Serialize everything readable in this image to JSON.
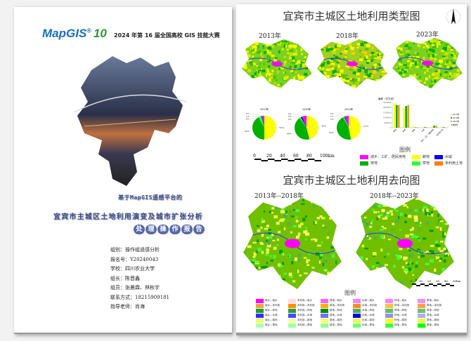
{
  "cover": {
    "logo": "MapGIS 10",
    "contest": "2024 年第 16 届全国高校 GIS 技能大赛",
    "subtitle": "基于MapGIS遥感平台的",
    "title": "宜宾市主城区土地利用演变及城市扩张分析",
    "badge": [
      "处",
      "理",
      "操",
      "作",
      "报",
      "告"
    ],
    "info": [
      "组别：操作组遥感分析",
      "报名号：Y20240043",
      "学校：四川农业大学",
      "组长：陈晋鑫",
      "组员：张晨霖、林秋宇",
      "联系方式：18215909181",
      "指导老师：肖海"
    ]
  },
  "poster1": {
    "title": "宜宾市主城区土地利用类型图",
    "years": [
      "2013年",
      "2018年",
      "2023年"
    ],
    "north_icon": "north-arrow-icon",
    "scale_labels": [
      "0",
      "20",
      "40",
      "60",
      "80",
      "100km"
    ],
    "legend_title": "图例",
    "legend": [
      {
        "label": "城乡、工矿、居民用地",
        "color": "#ff00ff"
      },
      {
        "label": "耕地",
        "color": "#ffff00"
      },
      {
        "label": "水域",
        "color": "#0000ff"
      },
      {
        "label": "林地",
        "color": "#00b000"
      },
      {
        "label": "草地",
        "color": "#33ff33"
      },
      {
        "label": "未利用土地",
        "color": "#ff8000"
      }
    ]
  },
  "chart_data": [
    {
      "type": "pie",
      "title": "2013年",
      "slices": [
        {
          "label": "耕地",
          "value": 50,
          "color": "#ffff00"
        },
        {
          "label": "林地",
          "value": 42,
          "color": "#00b000"
        },
        {
          "label": "草地",
          "value": 4,
          "color": "#33ff33"
        },
        {
          "label": "水域",
          "value": 1,
          "color": "#0000ff"
        },
        {
          "label": "城乡、工矿、居民用地",
          "value": 3,
          "color": "#ff00ff"
        }
      ]
    },
    {
      "type": "pie",
      "title": "2018年",
      "slices": [
        {
          "label": "耕地",
          "value": 46,
          "color": "#ffff00"
        },
        {
          "label": "林地",
          "value": 44,
          "color": "#00b000"
        },
        {
          "label": "草地",
          "value": 2,
          "color": "#33ff33"
        },
        {
          "label": "水域",
          "value": 2,
          "color": "#0000ff"
        },
        {
          "label": "城乡、工矿、居民用地",
          "value": 6,
          "color": "#ff00ff"
        }
      ]
    },
    {
      "type": "pie",
      "title": "2023年",
      "slices": [
        {
          "label": "耕地",
          "value": 47,
          "color": "#ffff00"
        },
        {
          "label": "林地",
          "value": 45,
          "color": "#00b000"
        },
        {
          "label": "草地",
          "value": 2,
          "color": "#33ff33"
        },
        {
          "label": "水域",
          "value": 1,
          "color": "#0000ff"
        },
        {
          "label": "城乡、工矿、居民用地",
          "value": 5,
          "color": "#ff00ff"
        }
      ]
    },
    {
      "type": "bar",
      "ylabel": "面积（平方米）",
      "ylim": [
        0,
        2500000
      ],
      "yticks": [
        "0",
        "500000",
        "1000000",
        "1500000",
        "2000000",
        "2500000"
      ],
      "categories": [
        "耕地",
        "林地",
        "草地",
        "水域",
        "城乡、工矿、居民用地",
        "未利用土地"
      ],
      "series": [
        {
          "name": "2013年",
          "color": "#ffff00",
          "values": [
            2400000,
            1950000,
            150000,
            50000,
            100000,
            20000
          ]
        },
        {
          "name": "2018年",
          "color": "#00a050",
          "values": [
            2250000,
            2150000,
            40000,
            60000,
            200000,
            60000
          ]
        },
        {
          "name": "2023年",
          "color": "#f0a000",
          "values": [
            2230000,
            2250000,
            40000,
            50000,
            170000,
            30000
          ]
        }
      ],
      "legend_extra": "土地类型"
    }
  ],
  "poster2": {
    "title": "宜宾市主城区土地利用去向图",
    "periods": [
      "2013年--2018年",
      "2018年--2023年"
    ],
    "scale_labels": [
      "0",
      "10",
      "20",
      "30",
      "40",
      "50km"
    ],
    "legend_title": "图例",
    "legend": [
      [
        {
          "label": "城乡—城乡",
          "color": "#ff00ff"
        },
        {
          "label": "城乡—未利用",
          "color": "#ffa040"
        },
        {
          "label": "城乡—林地",
          "color": "#20a020"
        },
        {
          "label": "城乡—水域",
          "color": "#3030ff"
        },
        {
          "label": "城乡—耕地",
          "color": "#f0ff60"
        },
        {
          "label": "城乡—草地",
          "color": "#b0ffb0"
        }
      ],
      [
        {
          "label": "未利用—城乡",
          "color": "#ffd8e8"
        },
        {
          "label": "未利用—未利用",
          "color": "#ff9000"
        },
        {
          "label": "未利用—林地",
          "color": "#30a030"
        },
        {
          "label": "未利用—水域",
          "color": "#4848ff"
        },
        {
          "label": "未利用—耕地",
          "color": "#f0ffa0"
        },
        {
          "label": "未利用—草地",
          "color": "#a0ffa0"
        }
      ],
      [
        {
          "label": "耕地—城乡",
          "color": "#ff60ff"
        },
        {
          "label": "耕地—未利用",
          "color": "#ffb000"
        },
        {
          "label": "耕地—林地",
          "color": "#009000"
        },
        {
          "label": "耕地—水域",
          "color": "#7070ff"
        },
        {
          "label": "耕地—耕地",
          "color": "#ffff60"
        },
        {
          "label": "耕地—草地",
          "color": "#90ff90"
        }
      ],
      [
        {
          "label": "水域—城乡",
          "color": "#ff80ff"
        },
        {
          "label": "水域—未利用",
          "color": "#ff8a20"
        },
        {
          "label": "水域—林地",
          "color": "#50b050"
        },
        {
          "label": "水域—水域",
          "color": "#0000ff"
        },
        {
          "label": "水域—耕地",
          "color": "#e8ff40"
        },
        {
          "label": "水域—草地",
          "color": "#70ff70"
        }
      ],
      [
        {
          "label": "林地—城乡",
          "color": "#ff80ff"
        },
        {
          "label": "林地—未利用",
          "color": "#ffc040"
        },
        {
          "label": "林地—林地",
          "color": "#60c060"
        },
        {
          "label": "林地—水域",
          "color": "#9090ff"
        },
        {
          "label": "林地—耕地",
          "color": "#ffff00"
        },
        {
          "label": "林地—草地",
          "color": "#40ff40"
        }
      ],
      [
        {
          "label": "草地—城乡",
          "color": "#f090f0"
        },
        {
          "label": "草地—未利用",
          "color": "#ffa050"
        },
        {
          "label": "草地—林地",
          "color": "#70c070"
        },
        {
          "label": "草地—水域",
          "color": "#b0b0ff"
        },
        {
          "label": "草地—耕地",
          "color": "#e8ff40"
        },
        {
          "label": "草地—草地",
          "color": "#00ff00"
        }
      ]
    ]
  }
}
